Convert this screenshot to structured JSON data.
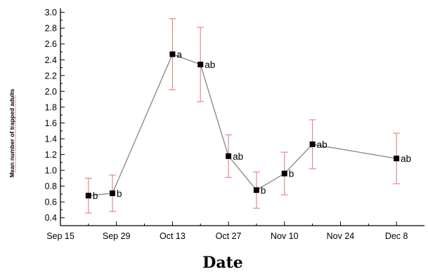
{
  "chart_data": {
    "type": "line",
    "xlabel": "Date",
    "ylabel": "Mean number of trapped adults",
    "ylim": [
      0.3,
      3.05
    ],
    "yticks": [
      0.4,
      0.6,
      0.8,
      1.0,
      1.2,
      1.4,
      1.6,
      1.8,
      2.0,
      2.2,
      2.4,
      2.6,
      2.8,
      3.0
    ],
    "ytick_labels": [
      "0.4",
      "0.6",
      "0.8",
      "1.0",
      "1.2",
      "1.4",
      "1.6",
      "1.8",
      "2.0",
      "2.2",
      "2.4",
      "2.6",
      "2.8",
      "3.0"
    ],
    "xlim": [
      "Sep 15",
      "Dec 15"
    ],
    "xticks": [
      "Sep 15",
      "Sep 29",
      "Oct 13",
      "Oct 27",
      "Nov 10",
      "Nov 24",
      "Dec 8"
    ],
    "grid": false,
    "series": [
      {
        "points": [
          {
            "x": "Sep 22",
            "y": 0.68,
            "err": 0.22,
            "label": "b"
          },
          {
            "x": "Sep 28",
            "y": 0.71,
            "err": 0.23,
            "label": "b"
          },
          {
            "x": "Oct 13",
            "y": 2.47,
            "err": 0.45,
            "label": "a"
          },
          {
            "x": "Oct 20",
            "y": 2.34,
            "err": 0.47,
            "label": "ab"
          },
          {
            "x": "Oct 27",
            "y": 1.18,
            "err": 0.27,
            "label": "ab"
          },
          {
            "x": "Nov 3",
            "y": 0.75,
            "err": 0.23,
            "label": "b"
          },
          {
            "x": "Nov 10",
            "y": 0.96,
            "err": 0.27,
            "label": "b"
          },
          {
            "x": "Nov 17",
            "y": 1.33,
            "err": 0.31,
            "label": "ab"
          },
          {
            "x": "Dec 8",
            "y": 1.15,
            "err": 0.32,
            "label": "ab"
          }
        ]
      }
    ],
    "colors": {
      "line": "#8c8c8c",
      "marker": "#000000",
      "errorbar": "#e8898a",
      "axis": "#000000"
    }
  }
}
